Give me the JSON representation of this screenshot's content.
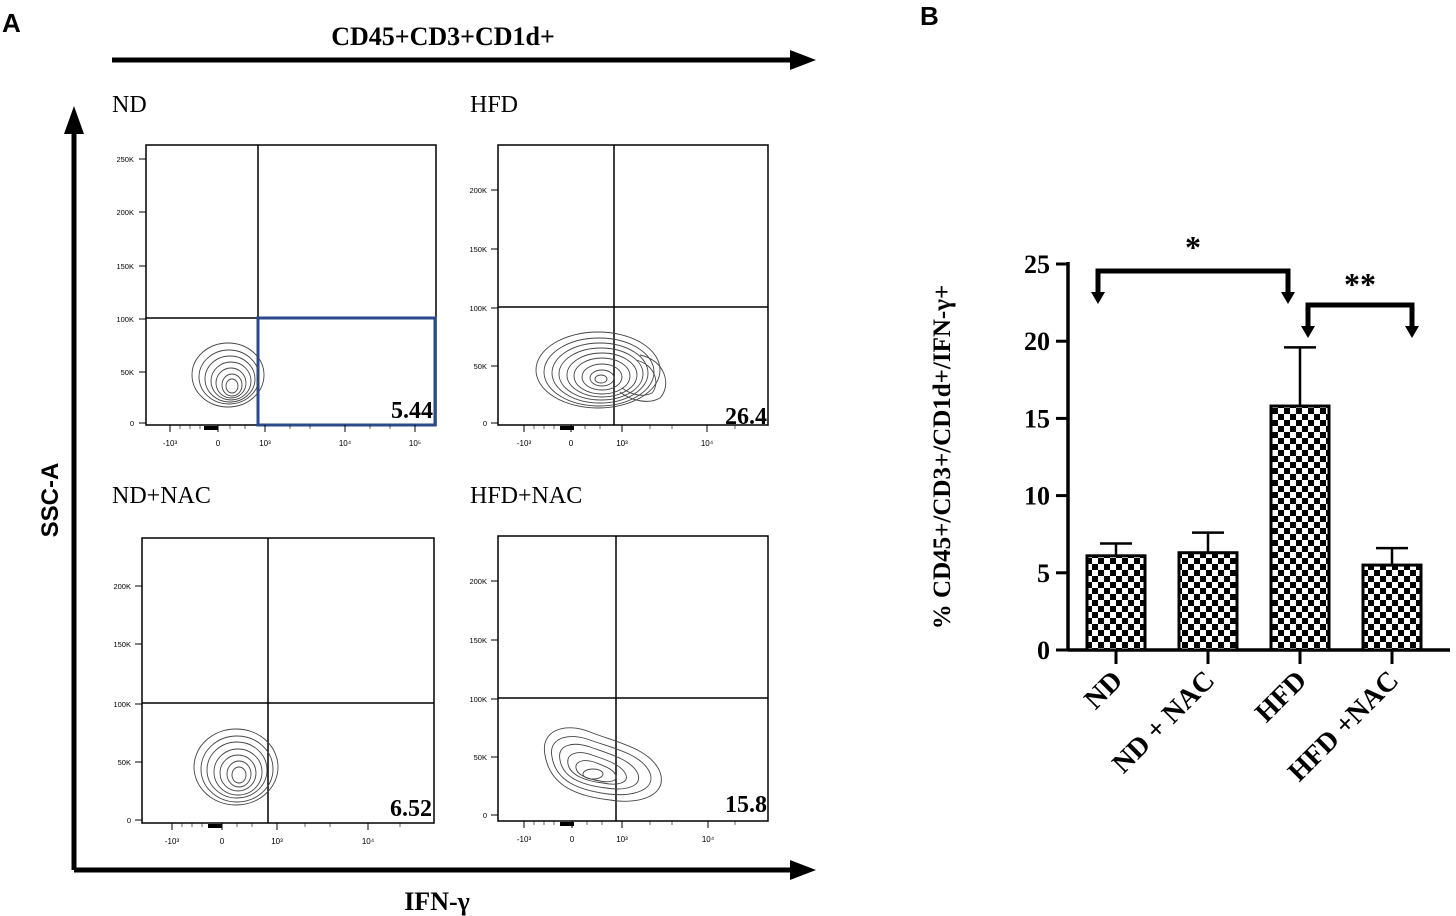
{
  "panel_a": {
    "letter": "A",
    "top_gate_label": "CD45+CD3+CD1d+",
    "y_axis_label": "SSC-A",
    "x_axis_label": "IFN-γ",
    "plots": [
      {
        "label": "ND",
        "percent": "5.44",
        "y_ticks": [
          "250K",
          "200K",
          "150K",
          "100K",
          "50K",
          "0"
        ],
        "x_ticks": [
          "-10³",
          "0",
          "10³",
          "10⁴",
          "10⁵"
        ]
      },
      {
        "label": "HFD",
        "percent": "26.4",
        "y_ticks": [
          "200K",
          "150K",
          "100K",
          "50K",
          "0"
        ],
        "x_ticks": [
          "-10³",
          "0",
          "10³",
          "10⁴"
        ]
      },
      {
        "label": "ND+NAC",
        "percent": "6.52",
        "y_ticks": [
          "200K",
          "150K",
          "100K",
          "50K",
          "0"
        ],
        "x_ticks": [
          "-10³",
          "0",
          "10³",
          "10⁴"
        ]
      },
      {
        "label": "HFD+NAC",
        "percent": "15.8",
        "y_ticks": [
          "200K",
          "150K",
          "100K",
          "50K",
          "0"
        ],
        "x_ticks": [
          "-10³",
          "0",
          "10³",
          "10⁴"
        ]
      }
    ]
  },
  "panel_b": {
    "letter": "B"
  },
  "chart_data": {
    "type": "bar",
    "title": "",
    "xlabel": "",
    "ylabel": "% CD45+/CD3+/CD1d+/IFN-γ+",
    "categories": [
      "ND",
      "ND + NAC",
      "HFD",
      "HFD +NAC"
    ],
    "values": [
      6.1,
      6.3,
      15.8,
      5.5
    ],
    "error_bars": [
      0.8,
      1.3,
      3.8,
      1.1
    ],
    "ylim": [
      0,
      25
    ],
    "y_ticks": [
      "0",
      "5",
      "10",
      "15",
      "20",
      "25"
    ],
    "significance": [
      {
        "from": "ND",
        "to": "HFD",
        "label": "*"
      },
      {
        "from": "HFD",
        "to": "HFD +NAC",
        "label": "**"
      }
    ],
    "bar_pattern": "checkerboard",
    "colors": {
      "bar_dark": "#000000",
      "bar_light": "#ffffff",
      "gate_box": "#2a4a8c"
    }
  }
}
